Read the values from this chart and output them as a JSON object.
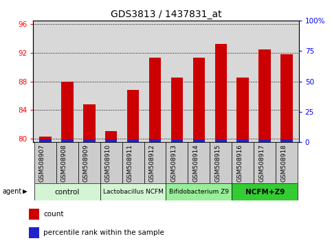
{
  "title": "GDS3813 / 1437831_at",
  "samples": [
    "GSM508907",
    "GSM508908",
    "GSM508909",
    "GSM508910",
    "GSM508911",
    "GSM508912",
    "GSM508913",
    "GSM508914",
    "GSM508915",
    "GSM508916",
    "GSM508917",
    "GSM508918"
  ],
  "count_values": [
    80.3,
    88.0,
    84.8,
    81.0,
    86.8,
    91.3,
    88.5,
    91.3,
    93.2,
    88.5,
    92.5,
    91.8
  ],
  "y_min": 79.5,
  "y_max": 96.5,
  "y_ticks": [
    80,
    84,
    88,
    92,
    96
  ],
  "y2_ticks_pct": [
    0,
    25,
    50,
    75,
    100
  ],
  "y2_tick_labels": [
    "0",
    "25",
    "50",
    "75",
    "100%"
  ],
  "bar_color_red": "#cc0000",
  "bar_color_blue": "#2222cc",
  "bar_width": 0.55,
  "blue_bar_height": 0.38,
  "groups": [
    {
      "label": "control",
      "start": 0,
      "end": 2,
      "color": "#d4f5d4"
    },
    {
      "label": "Lactobacillus NCFM",
      "start": 3,
      "end": 5,
      "color": "#d4f5d4"
    },
    {
      "label": "Bifidobacterium Z9",
      "start": 6,
      "end": 8,
      "color": "#99ee99"
    },
    {
      "label": "NCFM+Z9",
      "start": 9,
      "end": 11,
      "color": "#33cc33"
    }
  ],
  "agent_label": "agent",
  "legend_count": "count",
  "legend_percentile": "percentile rank within the sample",
  "plot_bg": "#d8d8d8",
  "title_fontsize": 10,
  "axis_tick_fontsize": 7.5,
  "label_fontsize": 6.5,
  "group_fontsize_small": 6.5,
  "group_fontsize_large": 7.5
}
